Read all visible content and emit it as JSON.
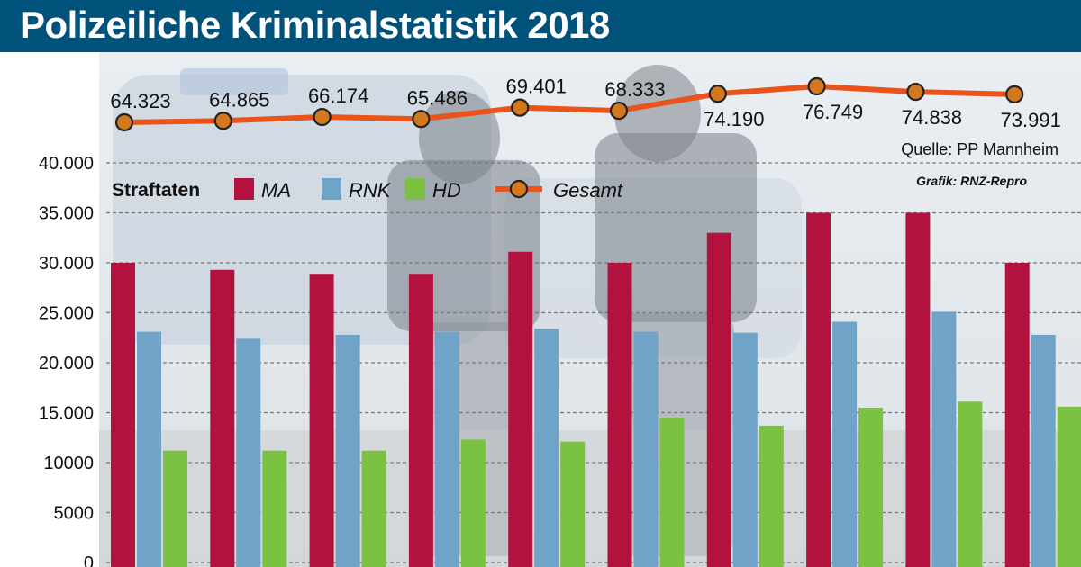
{
  "header": {
    "title": "Polizeiliche Kriminalstatistik 2018"
  },
  "colors": {
    "header_bg": "#00527a",
    "ma": "#b3123f",
    "rnk": "#6fa3c8",
    "hd": "#7cc242",
    "gesamt_line": "#e8541c",
    "gesamt_dot": "#d4781e",
    "grid": "#777777"
  },
  "chart_data": {
    "type": "bar",
    "title": "Polizeiliche Kriminalstatistik 2018",
    "categories": [
      "",
      "",
      "",
      "",
      "",
      "",
      "",
      "",
      "",
      ""
    ],
    "series": [
      {
        "name": "MA",
        "values": [
          30000,
          29300,
          28900,
          28900,
          31100,
          30000,
          33000,
          35000,
          35000,
          30000
        ]
      },
      {
        "name": "RNK",
        "values": [
          23100,
          22400,
          22800,
          23100,
          23400,
          23100,
          23000,
          24100,
          25100,
          22800
        ]
      },
      {
        "name": "HD",
        "values": [
          11200,
          11200,
          11200,
          12300,
          12100,
          14500,
          13700,
          15500,
          16100,
          15600
        ]
      }
    ],
    "line_series": {
      "name": "Gesamt",
      "values": [
        64323,
        64865,
        66174,
        65486,
        69401,
        68333,
        74190,
        76749,
        74838,
        73991
      ],
      "labels": [
        "64.323",
        "64.865",
        "66.174",
        "65.486",
        "69.401",
        "68.333",
        "74.190",
        "76.749",
        "74.838",
        "73.991"
      ]
    },
    "y_ticks": [
      {
        "value": 0,
        "label": "0"
      },
      {
        "value": 5000,
        "label": "5000"
      },
      {
        "value": 10000,
        "label": "10000"
      },
      {
        "value": 15000,
        "label": "15.000"
      },
      {
        "value": 20000,
        "label": "20.000"
      },
      {
        "value": 25000,
        "label": "25.000"
      },
      {
        "value": 30000,
        "label": "30.000"
      },
      {
        "value": 35000,
        "label": "35.000"
      },
      {
        "value": 40000,
        "label": "40.000"
      }
    ],
    "ylim": [
      0,
      40000
    ],
    "grid": true,
    "legend": {
      "title": "Straftaten",
      "entries": [
        "MA",
        "RNK",
        "HD",
        "Gesamt"
      ],
      "placement": "top-left"
    },
    "source": "Quelle: PP Mannheim",
    "credit": "Grafik: RNZ-Repro"
  }
}
